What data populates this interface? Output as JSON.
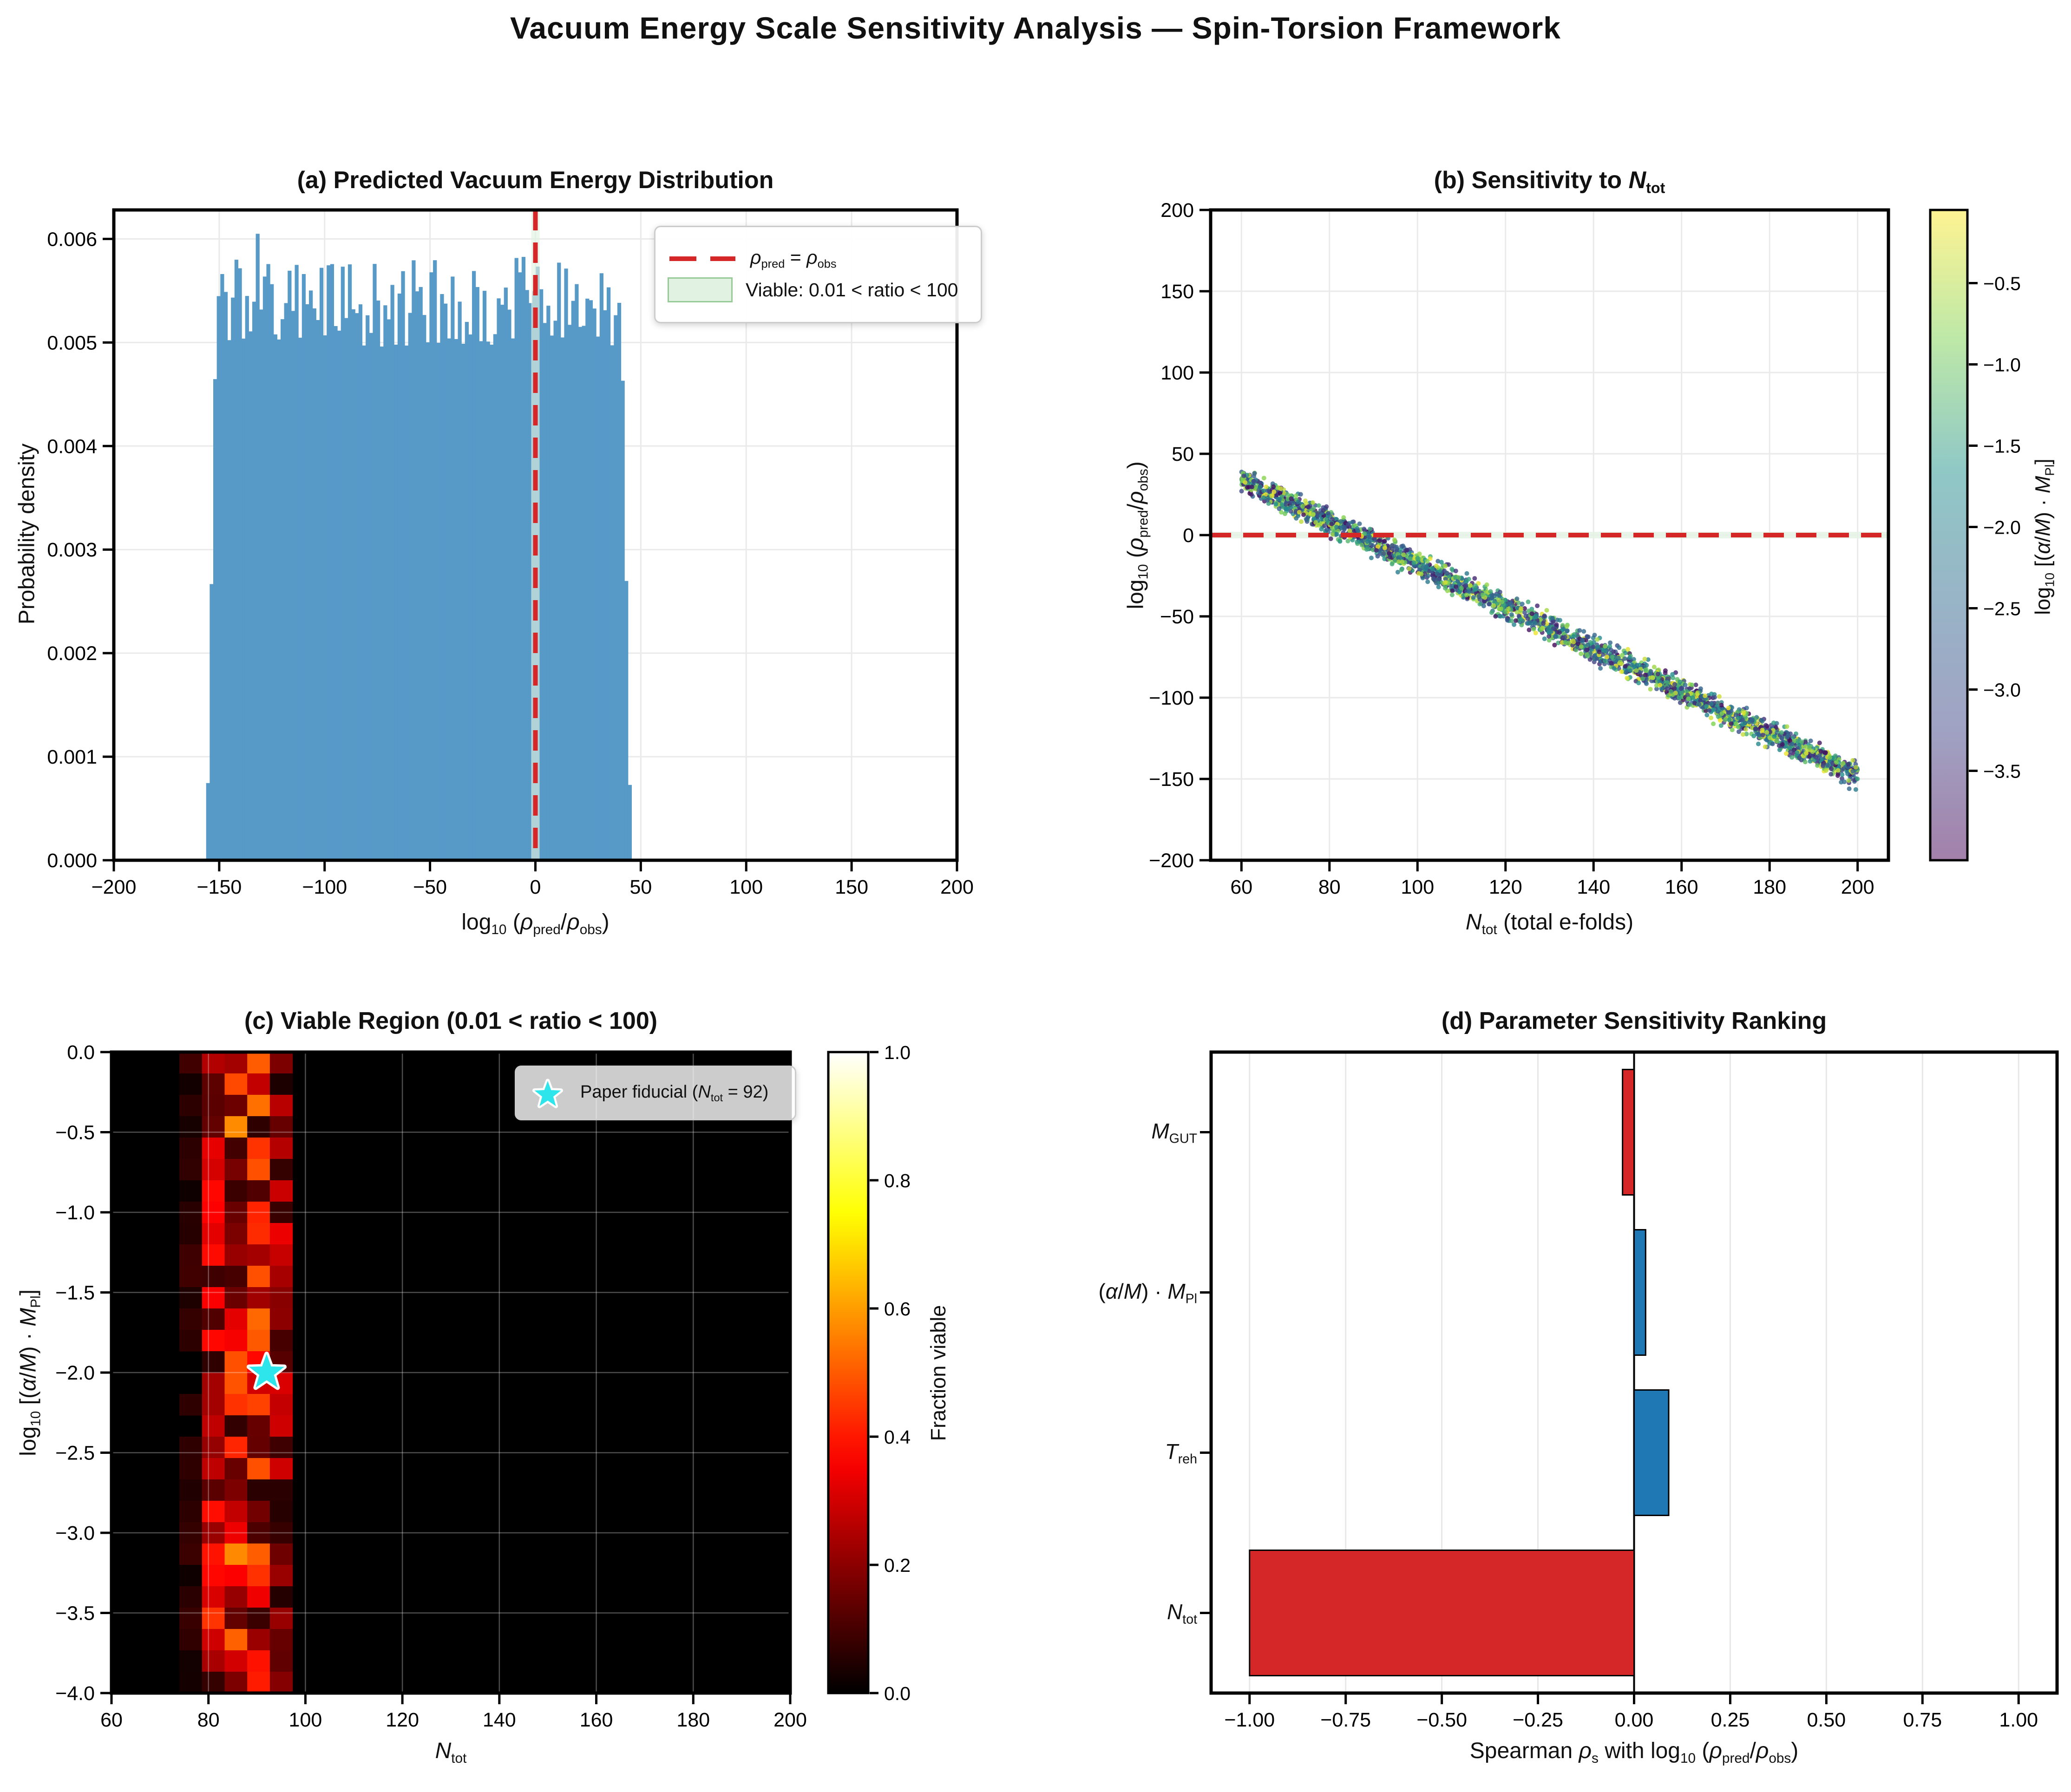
{
  "figure": {
    "title": "Vacuum Energy Scale Sensitivity Analysis — Spin-Torsion Framework"
  },
  "colors": {
    "accent_red": "#d62728",
    "bar_blue": "#1f77b4",
    "bar_red": "#d62728",
    "hist_blue": "#5799c7",
    "viable_fill": "#e2f2e2",
    "viable_edge": "#96ca96",
    "cyan_star": "#2de5ea",
    "heatmap_bg": "#000000",
    "legend_border": "#cccccc",
    "grid_grey": "#dddddd"
  },
  "chart_data": [
    {
      "id": "a",
      "type": "histogram",
      "title": [
        [
          "(a) Predicted Vacuum Energy Distribution"
        ]
      ],
      "xlabel": [
        [
          "log"
        ],
        [
          "10",
          "s"
        ],
        [
          " ("
        ],
        [
          "ρ",
          "i"
        ],
        [
          "pred",
          "s"
        ],
        [
          "/"
        ],
        [
          "ρ",
          "i"
        ],
        [
          "obs",
          "s"
        ],
        [
          ")"
        ]
      ],
      "ylabel": [
        [
          "Probability density"
        ]
      ],
      "xlim": [
        -200,
        200
      ],
      "ylim": [
        0,
        0.00628
      ],
      "xticks": [
        -200,
        -150,
        -100,
        -50,
        0,
        50,
        100,
        150,
        200
      ],
      "yticks": [
        0,
        0.001,
        0.002,
        0.003,
        0.004,
        0.005,
        0.006
      ],
      "hist": {
        "support": [
          -156.2,
          45.6
        ],
        "n_bins": 120,
        "plateau_density_min": 0.00496,
        "plateau_density_max": 0.00584,
        "peak_x": -131,
        "peak_density": 0.00605,
        "edge_ramp": [
          0.14,
          0.48,
          0.9
        ]
      },
      "ref_line_x": 0,
      "viable_band_x": [
        -2,
        2
      ],
      "legend": [
        {
          "sample": "dashed-red-line",
          "label": [
            [
              "ρ",
              "i"
            ],
            [
              "pred",
              "s"
            ],
            [
              " = "
            ],
            [
              "ρ",
              "i"
            ],
            [
              "obs",
              "s"
            ]
          ]
        },
        {
          "sample": "viable-patch",
          "label": [
            [
              "Viable: 0.01 < ratio < 100"
            ]
          ]
        }
      ]
    },
    {
      "id": "b",
      "type": "scatter",
      "title": [
        [
          "(b) Sensitivity to "
        ],
        [
          "N",
          "i"
        ],
        [
          "tot",
          "s"
        ]
      ],
      "xlabel": [
        [
          "N",
          "i"
        ],
        [
          "tot",
          "s"
        ],
        [
          " (total e-folds)"
        ]
      ],
      "ylabel": [
        [
          "log"
        ],
        [
          "10",
          "s"
        ],
        [
          " ("
        ],
        [
          "ρ",
          "i"
        ],
        [
          "pred",
          "s"
        ],
        [
          "/"
        ],
        [
          "ρ",
          "i"
        ],
        [
          "obs",
          "s"
        ],
        [
          ")"
        ]
      ],
      "xlim": [
        53,
        207
      ],
      "ylim": [
        -200,
        200
      ],
      "xticks": [
        60,
        80,
        100,
        120,
        140,
        160,
        180,
        200
      ],
      "yticks": [
        200,
        150,
        100,
        50,
        0,
        -50,
        -100,
        -150,
        -200
      ],
      "points": {
        "n": 2500,
        "x_range": [
          60,
          200
        ],
        "trend_y_at_60": 34,
        "trend_y_at_200": -148,
        "vertical_scatter": 3.8,
        "color_value_range": [
          -4.0,
          -0.1
        ],
        "colormap": "viridis",
        "alpha": 0.8
      },
      "ref_line_y": 0,
      "viable_band_y": [
        -2,
        2
      ],
      "colorbar": {
        "label": [
          [
            "log"
          ],
          [
            "10",
            "s"
          ],
          [
            " [("
          ],
          [
            "α",
            "i"
          ],
          [
            "/"
          ],
          [
            "M",
            "i"
          ],
          [
            ") · "
          ],
          [
            "M",
            "i"
          ],
          [
            "Pl",
            "s"
          ],
          [
            "]"
          ]
        ],
        "vmin": -4.05,
        "vmax": -0.05,
        "ticks": [
          -0.5,
          -1.0,
          -1.5,
          -2.0,
          -2.5,
          -3.0,
          -3.5
        ],
        "alpha": 0.5
      }
    },
    {
      "id": "c",
      "type": "heatmap",
      "title": [
        [
          "(c) Viable Region (0.01 < ratio < 100)"
        ]
      ],
      "xlabel": [
        [
          "N",
          "i"
        ],
        [
          "tot",
          "s"
        ]
      ],
      "ylabel": [
        [
          "log"
        ],
        [
          "10",
          "s"
        ],
        [
          " [("
        ],
        [
          "α",
          "i"
        ],
        [
          "/"
        ],
        [
          "M",
          "i"
        ],
        [
          ") · "
        ],
        [
          "M",
          "i"
        ],
        [
          "Pl",
          "s"
        ],
        [
          "]"
        ]
      ],
      "xlim": [
        60,
        200
      ],
      "ylim": [
        -4,
        0
      ],
      "xticks": [
        60,
        80,
        100,
        120,
        140,
        160,
        180,
        200
      ],
      "yticks": [
        0,
        -0.5,
        -1,
        -1.5,
        -2,
        -2.5,
        -3,
        -3.5,
        -4
      ],
      "grid": {
        "cols": 30,
        "rows": 30
      },
      "band": {
        "x_min": 76,
        "x_max": 97.5,
        "max_fraction": 0.55,
        "colormap": "hot"
      },
      "fiducial": {
        "x": 92,
        "y": -2
      },
      "legend": {
        "label": [
          [
            "Paper fiducial ("
          ],
          [
            "N",
            "i"
          ],
          [
            "tot",
            "s"
          ],
          [
            " = 92)"
          ]
        ]
      },
      "colorbar": {
        "label": [
          [
            "Fraction viable"
          ]
        ],
        "vmin": 0.0,
        "vmax": 1.0,
        "ticks": [
          1.0,
          0.8,
          0.6,
          0.4,
          0.2,
          0.0
        ]
      }
    },
    {
      "id": "d",
      "type": "bar",
      "title": [
        [
          "(d) Parameter Sensitivity Ranking"
        ]
      ],
      "xlabel": [
        [
          "Spearman "
        ],
        [
          "ρ",
          "i"
        ],
        [
          "s",
          "s"
        ],
        [
          " with log"
        ],
        [
          "10",
          "s"
        ],
        [
          " ("
        ],
        [
          "ρ",
          "i"
        ],
        [
          "pred",
          "s"
        ],
        [
          "/"
        ],
        [
          "ρ",
          "i"
        ],
        [
          "obs",
          "s"
        ],
        [
          ")"
        ]
      ],
      "xlim": [
        -1.1,
        1.1
      ],
      "xticks": [
        -1.0,
        -0.75,
        -0.5,
        -0.25,
        0,
        0.25,
        0.5,
        0.75,
        1.0
      ],
      "bars": [
        {
          "label": [
            [
              "M",
              "i"
            ],
            [
              "GUT",
              "s"
            ]
          ],
          "value": -0.03,
          "color": "red"
        },
        {
          "label": [
            [
              "("
            ],
            [
              "α",
              "i"
            ],
            [
              "/"
            ],
            [
              "M",
              "i"
            ],
            [
              ") · "
            ],
            [
              "M",
              "i"
            ],
            [
              "Pl",
              "s"
            ]
          ],
          "value": 0.03,
          "color": "blue"
        },
        {
          "label": [
            [
              "T",
              "i"
            ],
            [
              "reh",
              "s"
            ]
          ],
          "value": 0.09,
          "color": "blue"
        },
        {
          "label": [
            [
              "N",
              "i"
            ],
            [
              "tot",
              "s"
            ]
          ],
          "value": -1.0,
          "color": "red"
        }
      ]
    }
  ]
}
